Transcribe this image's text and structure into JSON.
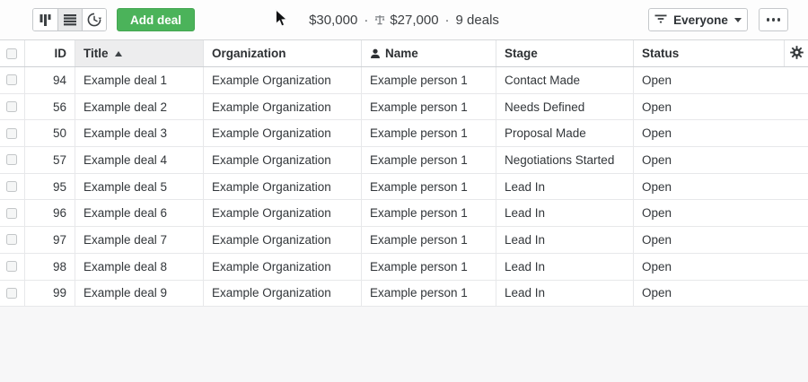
{
  "toolbar": {
    "add_deal_label": "Add deal",
    "summary": {
      "total_value": "$30,000",
      "dot1": "·",
      "weighted_value": "$27,000",
      "dot2": "·",
      "deals_count": "9 deals"
    },
    "filter_button_label": "Everyone"
  },
  "icons": {
    "view_1": "pipeline-view-icon",
    "view_2": "list-view-icon",
    "view_3": "timeline-clock-icon",
    "summary_weighted": "weighted-value-scale-icon",
    "filter": "filter-lines-icon",
    "filter_caret": "caret-down-icon",
    "more": "ellipsis-icon",
    "name_header": "person-icon",
    "settings": "gear-icon",
    "pointer": "mouse-cursor"
  },
  "table": {
    "columns": [
      {
        "key": "id",
        "label": "ID",
        "align": "right"
      },
      {
        "key": "title",
        "label": "Title",
        "sorted": "asc"
      },
      {
        "key": "organization",
        "label": "Organization"
      },
      {
        "key": "name",
        "label": "Name",
        "icon": "person"
      },
      {
        "key": "stage",
        "label": "Stage"
      },
      {
        "key": "status",
        "label": "Status"
      }
    ],
    "row_keys": [
      "id",
      "title",
      "organization",
      "name",
      "stage",
      "status"
    ],
    "rows": [
      {
        "id": "94",
        "title": "Example deal 1",
        "organization": "Example Organization",
        "name": "Example person 1",
        "stage": "Contact Made",
        "status": "Open"
      },
      {
        "id": "56",
        "title": "Example deal 2",
        "organization": "Example Organization",
        "name": "Example person 1",
        "stage": "Needs Defined",
        "status": "Open"
      },
      {
        "id": "50",
        "title": "Example deal 3",
        "organization": "Example Organization",
        "name": "Example person 1",
        "stage": "Proposal Made",
        "status": "Open"
      },
      {
        "id": "57",
        "title": "Example deal 4",
        "organization": "Example Organization",
        "name": "Example person 1",
        "stage": "Negotiations Started",
        "status": "Open"
      },
      {
        "id": "95",
        "title": "Example deal 5",
        "organization": "Example Organization",
        "name": "Example person 1",
        "stage": "Lead In",
        "status": "Open"
      },
      {
        "id": "96",
        "title": "Example deal 6",
        "organization": "Example Organization",
        "name": "Example person 1",
        "stage": "Lead In",
        "status": "Open"
      },
      {
        "id": "97",
        "title": "Example deal 7",
        "organization": "Example Organization",
        "name": "Example person 1",
        "stage": "Lead In",
        "status": "Open"
      },
      {
        "id": "98",
        "title": "Example deal 8",
        "organization": "Example Organization",
        "name": "Example person 1",
        "stage": "Lead In",
        "status": "Open"
      },
      {
        "id": "99",
        "title": "Example deal 9",
        "organization": "Example Organization",
        "name": "Example person 1",
        "stage": "Lead In",
        "status": "Open"
      }
    ]
  },
  "colors": {
    "accent_green": "#4bb35a",
    "toolbar_bg": "#fdfdfd",
    "sorted_header_bg": "#ededee",
    "row_border": "#e7e8ea",
    "page_bg": "#f7f7f8"
  }
}
